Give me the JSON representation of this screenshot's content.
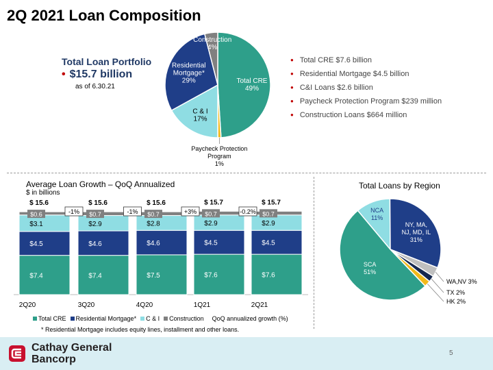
{
  "title": "2Q 2021 Loan Composition",
  "portfolio": {
    "heading": "Total Loan Portfolio",
    "amount": "$15.7 billion",
    "as_of": "as of 6.30.21"
  },
  "composition_list": [
    "Total CRE $7.6 billion",
    "Residential Mortgage $4.5 billion",
    "C&I Loans $2.6 billion",
    "Paycheck Protection Program $239 million",
    "Construction Loans $664 million"
  ],
  "chart_data": [
    {
      "type": "pie",
      "labels": [
        "Total CRE",
        "Paycheck Protection Program",
        "C & I",
        "Residential Mortgage*",
        "Construction"
      ],
      "values": [
        49,
        1,
        17,
        29,
        4
      ],
      "value_labels": [
        "49%",
        "1%",
        "17%",
        "29%",
        "4%"
      ],
      "colors": [
        "#2e9f8a",
        "#f2b91a",
        "#8fdde3",
        "#1f3e88",
        "#808080"
      ]
    },
    {
      "type": "bar",
      "stacked": true,
      "title": "Average Loan Growth – QoQ Annualized",
      "subtitle": "$ in billions",
      "categories": [
        "2Q20",
        "3Q20",
        "4Q20",
        "1Q21",
        "2Q21"
      ],
      "series": [
        {
          "name": "Total CRE",
          "values": [
            7.4,
            7.4,
            7.5,
            7.6,
            7.6
          ],
          "labels": [
            "$7.4",
            "$7.4",
            "$7.5",
            "$7.6",
            "$7.6"
          ],
          "color": "#2e9f8a"
        },
        {
          "name": "Residential Mortgage*",
          "values": [
            4.5,
            4.6,
            4.6,
            4.5,
            4.5
          ],
          "labels": [
            "$4.5",
            "$4.6",
            "$4.6",
            "$4.5",
            "$4.5"
          ],
          "color": "#1f3e88"
        },
        {
          "name": "C & I",
          "values": [
            3.1,
            2.9,
            2.8,
            2.9,
            2.9
          ],
          "labels": [
            "$3.1",
            "$2.9",
            "$2.8",
            "$2.9",
            "$2.9"
          ],
          "color": "#8fdde3"
        },
        {
          "name": "Construction",
          "values": [
            0.6,
            0.7,
            0.7,
            0.7,
            0.7
          ],
          "labels": [
            "$0.6",
            "$0.7",
            "$0.7",
            "$0.7",
            "$0.7"
          ],
          "color": "#808080"
        }
      ],
      "totals": [
        "$ 15.6",
        "$ 15.6",
        "$ 15.6",
        "$ 15.7",
        "$ 15.7"
      ],
      "total_values": [
        15.6,
        15.6,
        15.6,
        15.7,
        15.7
      ],
      "growth_labels": [
        "-1%",
        "-1%",
        "+3%",
        "-0.2%"
      ],
      "growth_series_name": "QoQ annualized growth (%)"
    },
    {
      "type": "pie",
      "title": "Total Loans by Region",
      "labels": [
        "NCA",
        "NY, MA, NJ, MD, IL",
        "WA,NV",
        "TX",
        "HK",
        "SCA"
      ],
      "values": [
        11,
        31,
        3,
        2,
        2,
        51
      ],
      "value_labels": [
        "11%",
        "31%",
        "3%",
        "2%",
        "2%",
        "51%"
      ],
      "colors": [
        "#8fdde3",
        "#1f3e88",
        "#bfbfbf",
        "#16284f",
        "#f2b91a",
        "#2e9f8a"
      ]
    }
  ],
  "footnote": "* Residential Mortgage includes equity lines, installment and other loans.",
  "logo": {
    "line1": "Cathay General",
    "line2": "Bancorp"
  },
  "page_number": "5"
}
